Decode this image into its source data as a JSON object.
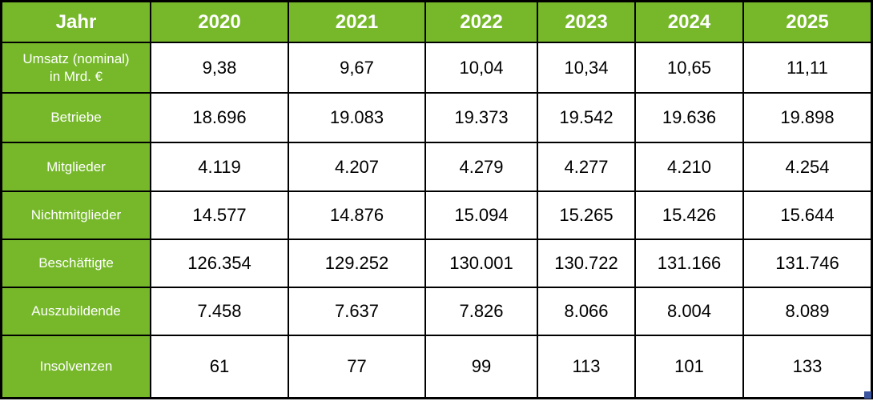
{
  "table": {
    "corner_label": "Jahr",
    "years": [
      "2020",
      "2021",
      "2022",
      "2023",
      "2024",
      "2025"
    ],
    "rows": [
      {
        "id": "umsatz",
        "label_lines": [
          "Umsatz (nominal)",
          "in Mrd. €"
        ],
        "values": [
          "9,38",
          "9,67",
          "10,04",
          "10,34",
          "10,65",
          "11,11"
        ]
      },
      {
        "id": "betriebe",
        "label_lines": [
          "Betriebe"
        ],
        "values": [
          "18.696",
          "19.083",
          "19.373",
          "19.542",
          "19.636",
          "19.898"
        ]
      },
      {
        "id": "mitglieder",
        "label_lines": [
          "Mitglieder"
        ],
        "values": [
          "4.119",
          "4.207",
          "4.279",
          "4.277",
          "4.210",
          "4.254"
        ]
      },
      {
        "id": "nichtmitglieder",
        "label_lines": [
          "Nichtmitglieder"
        ],
        "values": [
          "14.577",
          "14.876",
          "15.094",
          "15.265",
          "15.426",
          "15.644"
        ]
      },
      {
        "id": "beschaeftigte",
        "label_lines": [
          "Beschäftigte"
        ],
        "values": [
          "126.354",
          "129.252",
          "130.001",
          "130.722",
          "131.166",
          "131.746"
        ]
      },
      {
        "id": "auszubildende",
        "label_lines": [
          "Auszubildende"
        ],
        "values": [
          "7.458",
          "7.637",
          "7.826",
          "8.066",
          "8.004",
          "8.089"
        ]
      },
      {
        "id": "insolvenzen",
        "label_lines": [
          "Insolvenzen"
        ],
        "values": [
          "61",
          "77",
          "99",
          "113",
          "101",
          "133"
        ]
      }
    ]
  },
  "colors": {
    "header_green": "#76b82a",
    "grid_border": "#000000",
    "cell_background": "#ffffff",
    "header_text": "#ffffff",
    "value_text": "#000000",
    "handle_blue": "#3c55a0"
  },
  "chart_data": {
    "type": "table",
    "title": "Jahr",
    "categories": [
      2020,
      2021,
      2022,
      2023,
      2024,
      2025
    ],
    "series": [
      {
        "name": "Umsatz (nominal) in Mrd. €",
        "values": [
          9.38,
          9.67,
          10.04,
          10.34,
          10.65,
          11.11
        ]
      },
      {
        "name": "Betriebe",
        "values": [
          18696,
          19083,
          19373,
          19542,
          19636,
          19898
        ]
      },
      {
        "name": "Mitglieder",
        "values": [
          4119,
          4207,
          4279,
          4277,
          4210,
          4254
        ]
      },
      {
        "name": "Nichtmitglieder",
        "values": [
          14577,
          14876,
          15094,
          15265,
          15426,
          15644
        ]
      },
      {
        "name": "Beschäftigte",
        "values": [
          126354,
          129252,
          130001,
          130722,
          131166,
          131746
        ]
      },
      {
        "name": "Auszubildende",
        "values": [
          7458,
          7637,
          7826,
          8066,
          8004,
          8089
        ]
      },
      {
        "name": "Insolvenzen",
        "values": [
          61,
          77,
          99,
          113,
          101,
          133
        ]
      }
    ],
    "layout": {
      "grid": "black 2px cell borders",
      "header_row": "top",
      "header_column": "left",
      "number_format": "German (comma decimal, dot thousands)"
    }
  }
}
